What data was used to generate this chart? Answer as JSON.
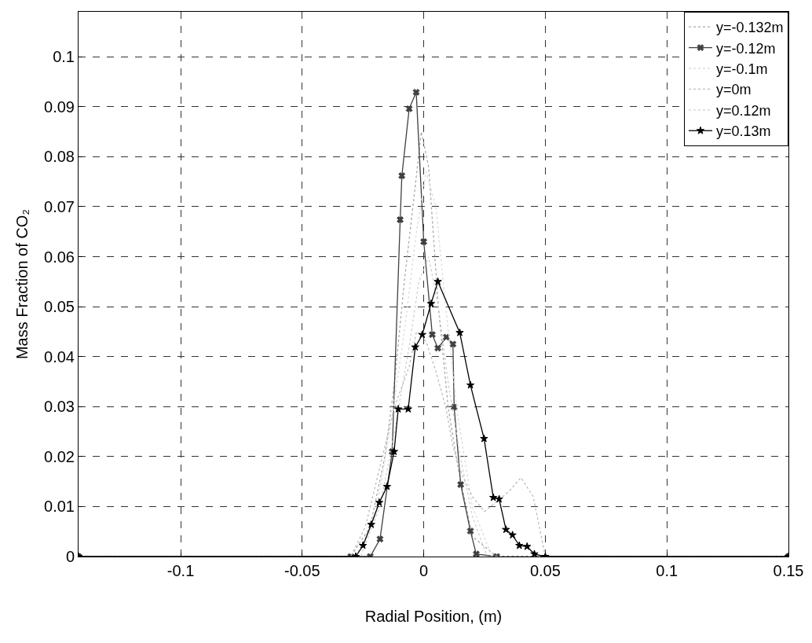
{
  "chart_data": {
    "type": "line",
    "xlabel": "Radial Position, (m)",
    "ylabel": "Mass Fraction of CO₂",
    "xlim": [
      -0.142,
      0.15
    ],
    "ylim": [
      0,
      0.109
    ],
    "xticks": [
      -0.1,
      -0.05,
      0,
      0.05,
      0.1,
      0.15
    ],
    "yticks": [
      0,
      0.01,
      0.02,
      0.03,
      0.04,
      0.05,
      0.06,
      0.07,
      0.08,
      0.09,
      0.1
    ],
    "grid": true,
    "legend": "top right",
    "series": [
      {
        "name": "y=-0.132m",
        "color": "#a8a8a8",
        "line_style": "dotted",
        "marker": "none",
        "x": [
          -0.142,
          -0.03,
          -0.022,
          -0.016,
          -0.012,
          -0.008,
          -0.004,
          -0.001,
          0.002,
          0.006,
          0.01,
          0.014,
          0.02,
          0.03,
          0.15
        ],
        "values": [
          0,
          0,
          0.006,
          0.02,
          0.035,
          0.055,
          0.072,
          0.085,
          0.078,
          0.05,
          0.03,
          0.018,
          0.004,
          0,
          0
        ]
      },
      {
        "name": "y=-0.12m",
        "color": "#404040",
        "line_style": "solid",
        "marker": "cross",
        "x": [
          -0.142,
          -0.03,
          -0.022,
          -0.018,
          -0.013,
          -0.0097,
          -0.009,
          -0.006,
          -0.0031,
          0,
          0.0035,
          0.0058,
          0.0093,
          0.012,
          0.0125,
          0.0152,
          0.0192,
          0.0216,
          0.03,
          0.15
        ],
        "values": [
          0,
          0,
          0,
          0.0035,
          0.021,
          0.0674,
          0.0762,
          0.0896,
          0.0929,
          0.063,
          0.0444,
          0.0417,
          0.0439,
          0.0425,
          0.0299,
          0.0144,
          0.0051,
          0.0005,
          0,
          0
        ]
      },
      {
        "name": "y=-0.1m",
        "color": "#dcdcdc",
        "line_style": "dotted",
        "marker": "none",
        "x": [
          -0.142,
          -0.028,
          -0.02,
          -0.014,
          -0.008,
          -0.003,
          0.001,
          0.005,
          0.009,
          0.014,
          0.02,
          0.028,
          0.15
        ],
        "values": [
          0,
          0,
          0.008,
          0.025,
          0.045,
          0.065,
          0.077,
          0.07,
          0.05,
          0.028,
          0.01,
          0,
          0
        ]
      },
      {
        "name": "y=0m",
        "color": "#bcbcbc",
        "line_style": "dotted",
        "marker": "none",
        "x": [
          -0.142,
          -0.03,
          -0.024,
          -0.018,
          -0.012,
          -0.006,
          -0.003,
          0.001,
          0.005,
          0.009,
          0.012,
          0.016,
          0.02,
          0.025,
          0.03,
          0.035,
          0.04,
          0.045,
          0.05,
          0.15
        ],
        "values": [
          0,
          0,
          0.006,
          0.018,
          0.03,
          0.038,
          0.045,
          0.043,
          0.037,
          0.03,
          0.022,
          0.016,
          0.012,
          0.009,
          0.011,
          0.013,
          0.0158,
          0.012,
          0,
          0
        ]
      },
      {
        "name": "y=0.12m",
        "color": "#cfcfcf",
        "line_style": "dotted",
        "marker": "none",
        "x": [
          -0.142,
          -0.026,
          -0.018,
          -0.012,
          -0.006,
          -0.002,
          0.002,
          0.006,
          0.01,
          0.015,
          0.02,
          0.026,
          0.15
        ],
        "values": [
          0,
          0,
          0.01,
          0.025,
          0.042,
          0.055,
          0.06,
          0.05,
          0.035,
          0.02,
          0.008,
          0,
          0
        ]
      },
      {
        "name": "y=0.13m",
        "color": "#000000",
        "line_style": "solid",
        "marker": "star",
        "x": [
          -0.142,
          -0.028,
          -0.025,
          -0.0216,
          -0.0183,
          -0.0151,
          -0.0122,
          -0.0105,
          -0.0064,
          -0.0035,
          -0.0006,
          0.003,
          0.0058,
          0.0148,
          0.0192,
          0.0248,
          0.0286,
          0.031,
          0.0338,
          0.0365,
          0.0393,
          0.0425,
          0.0455,
          0.05,
          0.15
        ],
        "values": [
          0,
          0,
          0.0022,
          0.0064,
          0.0108,
          0.014,
          0.021,
          0.0295,
          0.0295,
          0.0419,
          0.0444,
          0.0506,
          0.055,
          0.0448,
          0.0343,
          0.0236,
          0.0118,
          0.0115,
          0.0054,
          0.0043,
          0.0022,
          0.002,
          0.0005,
          0,
          0
        ]
      }
    ]
  }
}
